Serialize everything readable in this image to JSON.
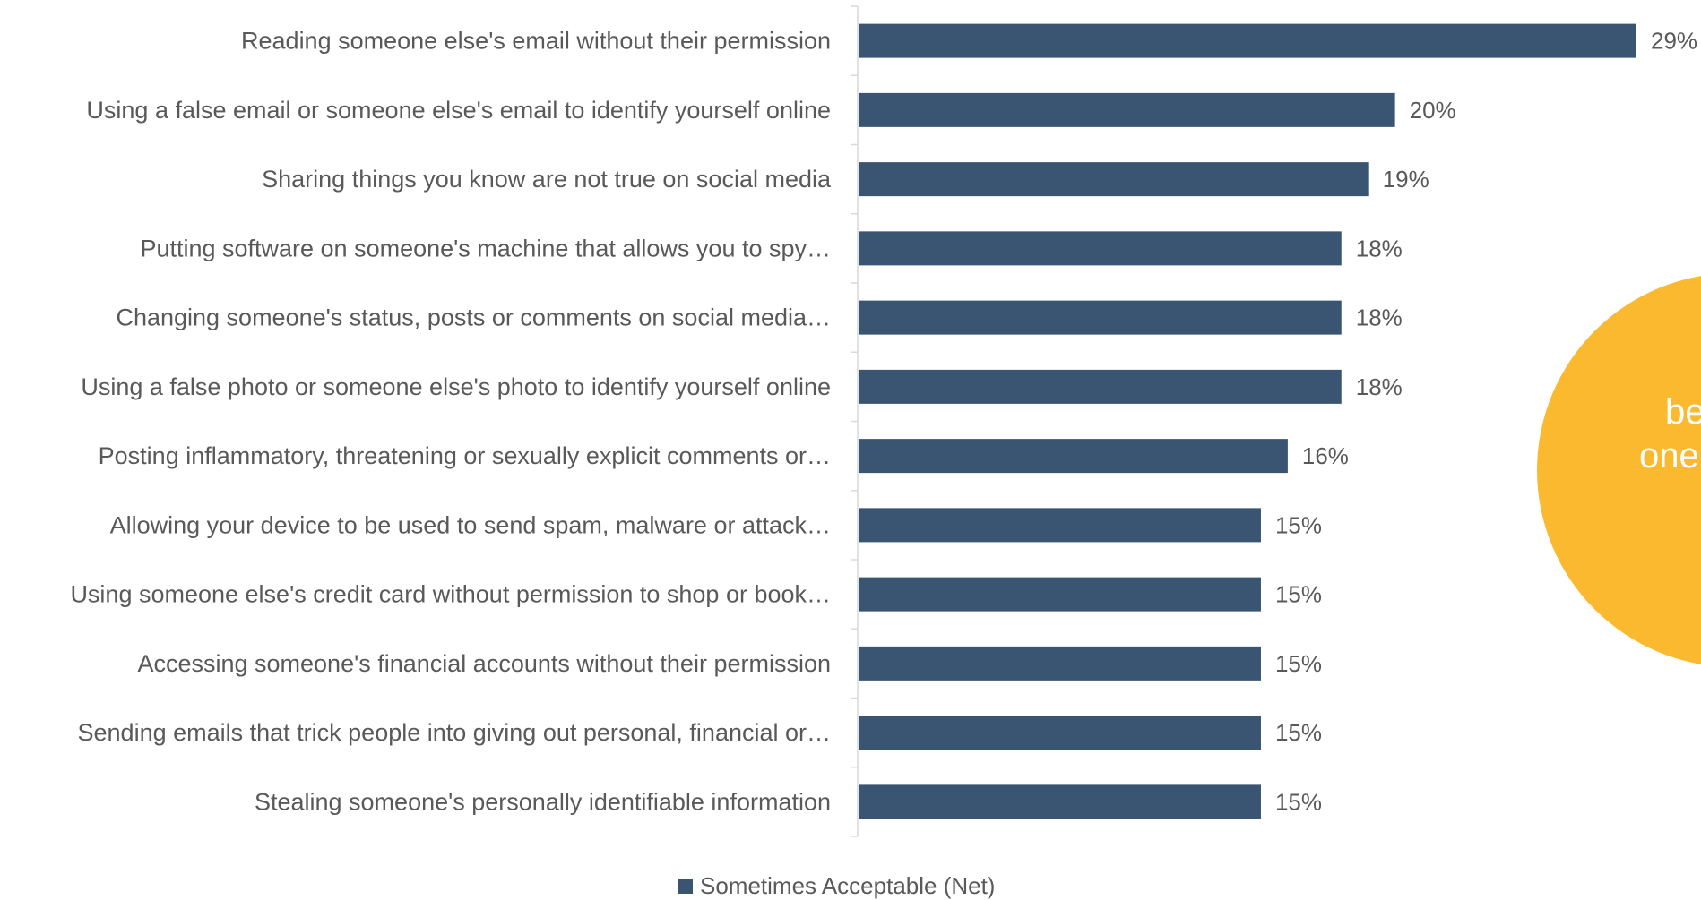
{
  "chart_data": {
    "type": "bar",
    "orientation": "horizontal",
    "title": "",
    "xlabel": "",
    "ylabel": "",
    "xlim": [
      0,
      30
    ],
    "grid": false,
    "legend_position": "bottom",
    "bar_color": "#3a5572",
    "categories": [
      "Reading someone else's email without their permission",
      "Using a false email or someone else's email to identify yourself online",
      "Sharing things you know are not true on social media",
      "Putting software on someone's machine that allows you to spy…",
      "Changing someone's status, posts or comments on social media…",
      "Using a false photo or someone else's photo to identify yourself online",
      "Posting inflammatory, threatening or sexually explicit comments or…",
      "Allowing your device to be used to send spam, malware or attack…",
      "Using someone else's credit card without permission to shop or book…",
      "Accessing someone's financial accounts without their permission",
      "Sending emails that trick people into giving out personal, financial or…",
      "Stealing someone's personally identifiable information"
    ],
    "series": [
      {
        "name": "Sometimes Acceptable (Net)",
        "values": [
          29,
          20,
          19,
          18,
          18,
          18,
          16,
          15,
          15,
          15,
          15,
          15
        ],
        "labels": [
          "29%",
          "20%",
          "19%",
          "18%",
          "18%",
          "18%",
          "16%",
          "15%",
          "15%",
          "15%",
          "15%",
          "15%"
        ]
      }
    ]
  },
  "callout": {
    "color": "#fbb930",
    "lines": [
      "be",
      "one"
    ]
  }
}
